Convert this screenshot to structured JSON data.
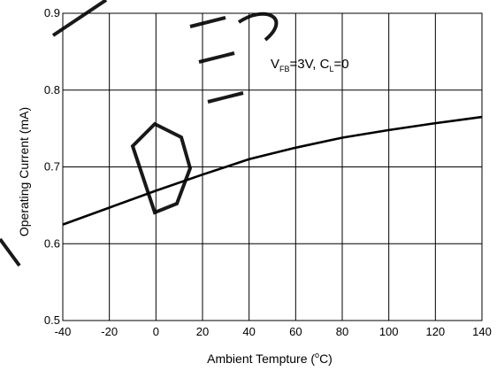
{
  "chart_data": {
    "type": "line",
    "xlabel_prefix": "Ambient Temptu",
    "xlabel_middle": "re (",
    "xlabel_sup": "o",
    "xlabel_suffix": "C)",
    "ylabel": "Operating Current (mA)",
    "xlim": [
      -40,
      140
    ],
    "ylim": [
      0.5,
      0.9
    ],
    "xticks": [
      -40,
      -20,
      0,
      20,
      40,
      60,
      80,
      100,
      120,
      140
    ],
    "yticks": [
      0.5,
      0.6,
      0.7,
      0.8,
      0.9
    ],
    "xtick_labels": [
      "-40",
      "-20",
      "0",
      "20",
      "40",
      "60",
      "80",
      "100",
      "120",
      "140"
    ],
    "ytick_labels": [
      "0.5",
      "0.6",
      "0.7",
      "0.8",
      "0.9"
    ],
    "grid": true,
    "annotation": {
      "v": "V",
      "v_sub": "FB",
      "v_eq": "=3V, C",
      "c_sub": "L",
      "c_eq": "=0"
    },
    "series": [
      {
        "x": [
          -40,
          -20,
          0,
          20,
          40,
          60,
          80,
          100,
          120,
          140
        ],
        "values": [
          0.625,
          0.647,
          0.669,
          0.69,
          0.71,
          0.725,
          0.738,
          0.748,
          0.757,
          0.765
        ]
      }
    ]
  },
  "colors": {
    "line": "#000000",
    "grid": "#000000",
    "background": "#ffffff"
  }
}
